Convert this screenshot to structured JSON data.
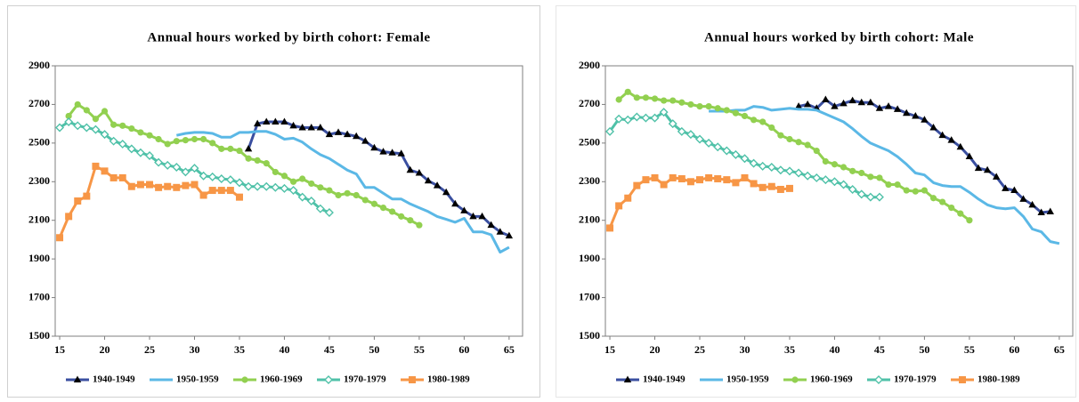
{
  "chart_data": [
    {
      "type": "line",
      "title": "Annual hours worked by birth cohort: Female",
      "x": [
        15,
        16,
        17,
        18,
        19,
        20,
        21,
        22,
        23,
        24,
        25,
        26,
        27,
        28,
        29,
        30,
        31,
        32,
        33,
        34,
        35,
        36,
        37,
        38,
        39,
        40,
        41,
        42,
        43,
        44,
        45,
        46,
        47,
        48,
        49,
        50,
        51,
        52,
        53,
        54,
        55,
        56,
        57,
        58,
        59,
        60,
        61,
        62,
        63,
        64,
        65
      ],
      "xlim": [
        14.5,
        66.5
      ],
      "xticks": [
        15,
        20,
        25,
        30,
        35,
        40,
        45,
        50,
        55,
        60,
        65
      ],
      "ylim": [
        1500,
        2900
      ],
      "yticks": [
        1500,
        1700,
        1900,
        2100,
        2300,
        2500,
        2700,
        2900
      ],
      "series": [
        {
          "name": "1940-1949",
          "color": "#3a4fa0",
          "marker": "triangle",
          "marker_color": "#000000",
          "values": [
            null,
            null,
            null,
            null,
            null,
            null,
            null,
            null,
            null,
            null,
            null,
            null,
            null,
            null,
            null,
            null,
            null,
            null,
            null,
            null,
            null,
            2470,
            2600,
            2610,
            2610,
            2610,
            2590,
            2580,
            2580,
            2580,
            2545,
            2555,
            2545,
            2535,
            2510,
            2475,
            2455,
            2450,
            2445,
            2360,
            2345,
            2305,
            2280,
            2245,
            2185,
            2150,
            2120,
            2120,
            2075,
            2040,
            2020
          ]
        },
        {
          "name": "1950-1959",
          "color": "#5bb8e6",
          "marker": "none",
          "values": [
            null,
            null,
            null,
            null,
            null,
            null,
            null,
            null,
            null,
            null,
            null,
            null,
            null,
            2540,
            2550,
            2555,
            2555,
            2550,
            2530,
            2530,
            2555,
            2555,
            2560,
            2560,
            2545,
            2520,
            2525,
            2505,
            2470,
            2440,
            2420,
            2390,
            2360,
            2340,
            2270,
            2270,
            2240,
            2210,
            2210,
            2185,
            2165,
            2145,
            2120,
            2105,
            2090,
            2110,
            2040,
            2040,
            2025,
            1935,
            1960
          ]
        },
        {
          "name": "1960-1969",
          "color": "#92d050",
          "marker": "circle",
          "values": [
            null,
            2640,
            2700,
            2670,
            2625,
            2665,
            2595,
            2590,
            2575,
            2555,
            2540,
            2520,
            2495,
            2510,
            2515,
            2520,
            2520,
            2500,
            2470,
            2470,
            2460,
            2420,
            2410,
            2395,
            2350,
            2330,
            2300,
            2315,
            2290,
            2270,
            2255,
            2230,
            2240,
            2230,
            2205,
            2185,
            2165,
            2145,
            2120,
            2100,
            2075,
            null,
            null,
            null,
            null,
            null,
            null,
            null,
            null,
            null,
            null
          ]
        },
        {
          "name": "1970-1979",
          "color": "#4fc1a8",
          "marker": "diamond",
          "values": [
            2580,
            2610,
            2590,
            2580,
            2570,
            2545,
            2510,
            2495,
            2470,
            2450,
            2435,
            2400,
            2385,
            2375,
            2350,
            2370,
            2330,
            2325,
            2315,
            2310,
            2295,
            2275,
            2275,
            2275,
            2270,
            2265,
            2255,
            2220,
            2200,
            2160,
            2140,
            null,
            null,
            null,
            null,
            null,
            null,
            null,
            null,
            null,
            null,
            null,
            null,
            null,
            null,
            null,
            null,
            null,
            null,
            null,
            null
          ]
        },
        {
          "name": "1980-1989",
          "color": "#f79646",
          "marker": "square",
          "values": [
            2010,
            2120,
            2200,
            2225,
            2380,
            2355,
            2320,
            2320,
            2275,
            2285,
            2285,
            2270,
            2275,
            2270,
            2280,
            2285,
            2230,
            2255,
            2255,
            2255,
            2220,
            null,
            null,
            null,
            null,
            null,
            null,
            null,
            null,
            null,
            null,
            null,
            null,
            null,
            null,
            null,
            null,
            null,
            null,
            null,
            null,
            null,
            null,
            null,
            null,
            null,
            null,
            null,
            null,
            null,
            null
          ]
        }
      ]
    },
    {
      "type": "line",
      "title": "Annual hours worked by birth cohort: Male",
      "x": [
        15,
        16,
        17,
        18,
        19,
        20,
        21,
        22,
        23,
        24,
        25,
        26,
        27,
        28,
        29,
        30,
        31,
        32,
        33,
        34,
        35,
        36,
        37,
        38,
        39,
        40,
        41,
        42,
        43,
        44,
        45,
        46,
        47,
        48,
        49,
        50,
        51,
        52,
        53,
        54,
        55,
        56,
        57,
        58,
        59,
        60,
        61,
        62,
        63,
        64,
        65
      ],
      "xlim": [
        14.5,
        66.5
      ],
      "xticks": [
        15,
        20,
        25,
        30,
        35,
        40,
        45,
        50,
        55,
        60,
        65
      ],
      "ylim": [
        1500,
        2900
      ],
      "yticks": [
        1500,
        1700,
        1900,
        2100,
        2300,
        2500,
        2700,
        2900
      ],
      "series": [
        {
          "name": "1940-1949",
          "color": "#3a4fa0",
          "marker": "triangle",
          "marker_color": "#000000",
          "values": [
            null,
            null,
            null,
            null,
            null,
            null,
            null,
            null,
            null,
            null,
            null,
            null,
            null,
            null,
            null,
            null,
            null,
            null,
            null,
            null,
            null,
            2690,
            2700,
            2680,
            2725,
            2690,
            2705,
            2720,
            2710,
            2710,
            2680,
            2690,
            2675,
            2655,
            2640,
            2620,
            2580,
            2540,
            2515,
            2480,
            2430,
            2370,
            2360,
            2325,
            2265,
            2255,
            2210,
            2180,
            2140,
            2145,
            null
          ]
        },
        {
          "name": "1950-1959",
          "color": "#5bb8e6",
          "marker": "none",
          "values": [
            null,
            null,
            null,
            null,
            null,
            null,
            null,
            null,
            null,
            null,
            null,
            2665,
            2665,
            2665,
            2670,
            2670,
            2690,
            2685,
            2670,
            2675,
            2680,
            2675,
            2675,
            2670,
            2650,
            2630,
            2610,
            2575,
            2535,
            2500,
            2480,
            2460,
            2430,
            2390,
            2345,
            2335,
            2295,
            2280,
            2275,
            2275,
            2245,
            2210,
            2180,
            2165,
            2160,
            2165,
            2120,
            2055,
            2040,
            1990,
            1980
          ]
        },
        {
          "name": "1960-1969",
          "color": "#92d050",
          "marker": "circle",
          "values": [
            null,
            2725,
            2765,
            2735,
            2735,
            2730,
            2720,
            2720,
            2710,
            2700,
            2690,
            2690,
            2680,
            2670,
            2655,
            2640,
            2620,
            2610,
            2580,
            2540,
            2520,
            2505,
            2490,
            2460,
            2405,
            2390,
            2375,
            2355,
            2345,
            2325,
            2320,
            2285,
            2285,
            2255,
            2250,
            2255,
            2215,
            2195,
            2165,
            2135,
            2100,
            null,
            null,
            null,
            null,
            null,
            null,
            null,
            null,
            null,
            null
          ]
        },
        {
          "name": "1970-1979",
          "color": "#4fc1a8",
          "marker": "diamond",
          "values": [
            2560,
            2625,
            2620,
            2635,
            2630,
            2630,
            2660,
            2600,
            2560,
            2545,
            2520,
            2500,
            2480,
            2460,
            2440,
            2420,
            2395,
            2380,
            2375,
            2360,
            2355,
            2345,
            2330,
            2320,
            2310,
            2300,
            2285,
            2260,
            2235,
            2220,
            2220,
            null,
            null,
            null,
            null,
            null,
            null,
            null,
            null,
            null,
            null,
            null,
            null,
            null,
            null,
            null,
            null,
            null,
            null,
            null,
            null
          ]
        },
        {
          "name": "1980-1989",
          "color": "#f79646",
          "marker": "square",
          "values": [
            2060,
            2175,
            2215,
            2280,
            2310,
            2320,
            2285,
            2320,
            2315,
            2300,
            2310,
            2320,
            2315,
            2310,
            2295,
            2320,
            2290,
            2270,
            2275,
            2260,
            2265,
            null,
            null,
            null,
            null,
            null,
            null,
            null,
            null,
            null,
            null,
            null,
            null,
            null,
            null,
            null,
            null,
            null,
            null,
            null,
            null,
            null,
            null,
            null,
            null,
            null,
            null,
            null,
            null,
            null,
            null
          ]
        }
      ]
    }
  ]
}
